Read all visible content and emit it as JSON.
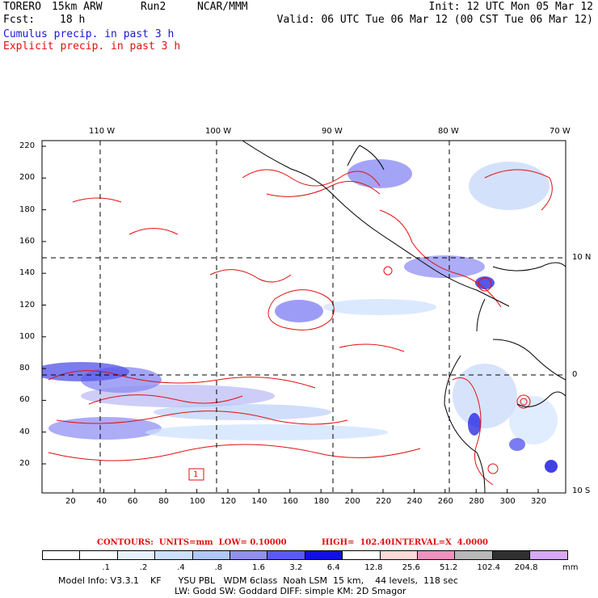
{
  "header": {
    "model": "TORERO",
    "resolution": "15km ARW",
    "run": "Run2",
    "org": "NCAR/MMM",
    "init": "Init: 12 UTC Mon 05 Mar 12",
    "fcst_label": "Fcst:",
    "fcst_value": "18 h",
    "valid": "Valid: 06 UTC Tue 06 Mar 12 (00 CST Tue 06 Mar 12)",
    "field1": "Cumulus precip. in past 3 h",
    "field2": "Explicit precip. in past 3 h",
    "field1_color": "#1a1acc",
    "field2_color": "#e01010"
  },
  "map": {
    "lon_labels": [
      "110 W",
      "100 W",
      "90 W",
      "80 W",
      "70 W"
    ],
    "lat_labels": [
      "10 N",
      "0",
      "10 S"
    ],
    "y_ticks": [
      "220",
      "200",
      "180",
      "160",
      "140",
      "120",
      "100",
      "80",
      "60",
      "40",
      "20"
    ],
    "x_ticks": [
      "20",
      "40",
      "60",
      "80",
      "100",
      "120",
      "140",
      "160",
      "180",
      "200",
      "220",
      "240",
      "260",
      "280",
      "300",
      "320"
    ],
    "box_label": "1"
  },
  "contours": {
    "units": "CONTOURS:  UNITS=mm  LOW= 0.10000",
    "high": "HIGH=  102.40",
    "interval": "INTERVAL=X  4.0000"
  },
  "legend": {
    "colors": [
      "#ffffff",
      "#ffffff",
      "#e6f0ff",
      "#cce0ff",
      "#b0c8f8",
      "#9090f0",
      "#5a5af0",
      "#1010e0",
      "#ffffff",
      "#ffd8d8",
      "#f090c0",
      "#b8b8b8",
      "#303030",
      "#d8a8f8"
    ],
    "labels": [
      ".1",
      ".2",
      ".4",
      ".8",
      "1.6",
      "3.2",
      "6.4",
      "12.8",
      "25.6",
      "51.2",
      "102.4",
      "204.8"
    ],
    "unit": "mm"
  },
  "footer": {
    "line1": "Model Info: V3.3.1    KF      YSU PBL   WDM 6class  Noah LSM  15 km,    44 levels,  118 sec",
    "line2": "LW: Godd SW: Goddard DIFF: simple KM: 2D Smagor"
  }
}
